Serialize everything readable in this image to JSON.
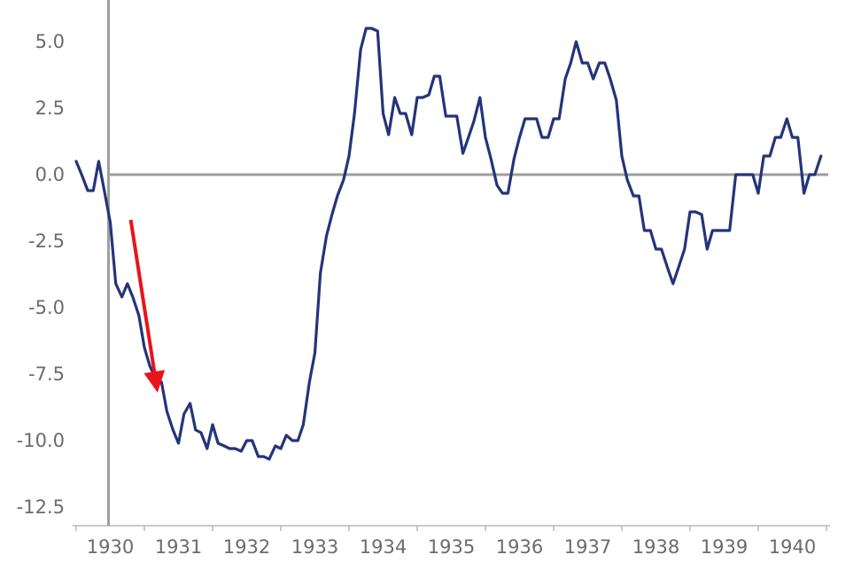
{
  "chart_data": {
    "type": "line",
    "title": "",
    "xlabel": "",
    "ylabel": "",
    "ylim": [
      -12.5,
      5.0
    ],
    "yticks": [
      "5.0",
      "2.5",
      "0.0",
      "-2.5",
      "-5.0",
      "-7.5",
      "-10.0",
      "-12.5"
    ],
    "ytick_values": [
      5.0,
      2.5,
      0.0,
      -2.5,
      -5.0,
      -7.5,
      -10.0,
      -12.5
    ],
    "xlim": [
      1929.95,
      1940.98
    ],
    "xticks": [
      "1930",
      "1931",
      "1932",
      "1933",
      "1934",
      "1935",
      "1936",
      "1937",
      "1938",
      "1939",
      "1940"
    ],
    "grid": false,
    "legend": "none",
    "series_color": "#24347a",
    "zero_line_color": "#9e9e9e",
    "annotation_color": "#e8141a",
    "annotation": {
      "type": "arrow",
      "from": [
        1930.8,
        -1.7
      ],
      "to": [
        1931.17,
        -7.8
      ]
    },
    "series": [
      {
        "x": [
          1930.0,
          1930.08,
          1930.17,
          1930.25,
          1930.33,
          1930.42,
          1930.5,
          1930.58,
          1930.67,
          1930.75,
          1930.83,
          1930.92,
          1931.0,
          1931.08,
          1931.17,
          1931.25,
          1931.33,
          1931.42,
          1931.5,
          1931.58,
          1931.67,
          1931.75,
          1931.83,
          1931.92,
          1932.0,
          1932.08,
          1932.17,
          1932.25,
          1932.33,
          1932.42,
          1932.5,
          1932.58,
          1932.67,
          1932.75,
          1932.83,
          1932.92,
          1933.0,
          1933.08,
          1933.17,
          1933.25,
          1933.33,
          1933.42,
          1933.5,
          1933.58,
          1933.67,
          1933.75,
          1933.83,
          1933.92,
          1934.0,
          1934.08,
          1934.17,
          1934.25,
          1934.33,
          1934.42,
          1934.5,
          1934.58,
          1934.67,
          1934.75,
          1934.83,
          1934.92,
          1935.0,
          1935.08,
          1935.17,
          1935.25,
          1935.33,
          1935.42,
          1935.5,
          1935.58,
          1935.67,
          1935.75,
          1935.83,
          1935.92,
          1936.0,
          1936.08,
          1936.17,
          1936.25,
          1936.33,
          1936.42,
          1936.5,
          1936.58,
          1936.67,
          1936.75,
          1936.83,
          1936.92,
          1937.0,
          1937.08,
          1937.17,
          1937.25,
          1937.33,
          1937.42,
          1937.5,
          1937.58,
          1937.67,
          1937.75,
          1937.83,
          1937.92,
          1938.0,
          1938.08,
          1938.17,
          1938.25,
          1938.33,
          1938.42,
          1938.5,
          1938.58,
          1938.67,
          1938.75,
          1938.83,
          1938.92,
          1939.0,
          1939.08,
          1939.17,
          1939.25,
          1939.33,
          1939.42,
          1939.5,
          1939.58,
          1939.67,
          1939.75,
          1939.83,
          1939.92,
          1940.0,
          1940.08,
          1940.17,
          1940.25,
          1940.33,
          1940.42,
          1940.5,
          1940.58,
          1940.67,
          1940.75,
          1940.83,
          1940.92
        ],
        "values": [
          0.5,
          0.0,
          -0.6,
          -0.6,
          0.5,
          -0.7,
          -1.8,
          -4.1,
          -4.6,
          -4.1,
          -4.6,
          -5.3,
          -6.5,
          -7.2,
          -7.7,
          -7.8,
          -8.9,
          -9.6,
          -10.1,
          -9.0,
          -8.6,
          -9.6,
          -9.7,
          -10.3,
          -9.4,
          -10.1,
          -10.2,
          -10.3,
          -10.3,
          -10.4,
          -10.0,
          -10.0,
          -10.6,
          -10.6,
          -10.7,
          -10.2,
          -10.3,
          -9.8,
          -10.0,
          -10.0,
          -9.4,
          -7.8,
          -6.7,
          -3.7,
          -2.3,
          -1.5,
          -0.8,
          -0.2,
          0.7,
          2.3,
          4.7,
          5.5,
          5.5,
          5.4,
          2.3,
          1.5,
          2.9,
          2.3,
          2.3,
          1.5,
          2.9,
          2.9,
          3.0,
          3.7,
          3.7,
          2.2,
          2.2,
          2.2,
          0.8,
          1.4,
          2.0,
          2.9,
          1.4,
          0.6,
          -0.4,
          -0.7,
          -0.7,
          0.6,
          1.4,
          2.1,
          2.1,
          2.1,
          1.4,
          1.4,
          2.1,
          2.1,
          3.6,
          4.2,
          5.0,
          4.2,
          4.2,
          3.6,
          4.2,
          4.2,
          3.6,
          2.8,
          0.7,
          -0.2,
          -0.8,
          -0.8,
          -2.1,
          -2.1,
          -2.8,
          -2.8,
          -3.5,
          -4.1,
          -3.5,
          -2.8,
          -1.4,
          -1.4,
          -1.5,
          -2.8,
          -2.1,
          -2.1,
          -2.1,
          -2.1,
          0.0,
          0.0,
          0.0,
          0.0,
          -0.7,
          0.7,
          0.7,
          1.4,
          1.4,
          2.1,
          1.4,
          1.4,
          -0.7,
          0.0,
          0.0,
          0.7
        ]
      }
    ]
  }
}
